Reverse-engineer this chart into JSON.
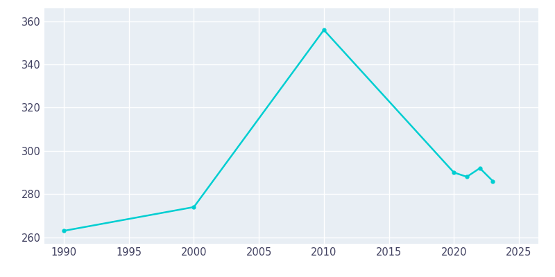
{
  "years": [
    1990,
    2000,
    2010,
    2020,
    2021,
    2022,
    2023
  ],
  "values": [
    263,
    274,
    356,
    290,
    288,
    292,
    286
  ],
  "line_color": "#00CED1",
  "line_width": 1.8,
  "bg_color": "#E8EEF4",
  "fig_bg_color": "#ffffff",
  "grid_color": "#ffffff",
  "xlim": [
    1988.5,
    2026.5
  ],
  "ylim": [
    257,
    366
  ],
  "xticks": [
    1990,
    1995,
    2000,
    2005,
    2010,
    2015,
    2020,
    2025
  ],
  "yticks": [
    260,
    280,
    300,
    320,
    340,
    360
  ],
  "tick_label_color": "#404060",
  "tick_fontsize": 10.5
}
